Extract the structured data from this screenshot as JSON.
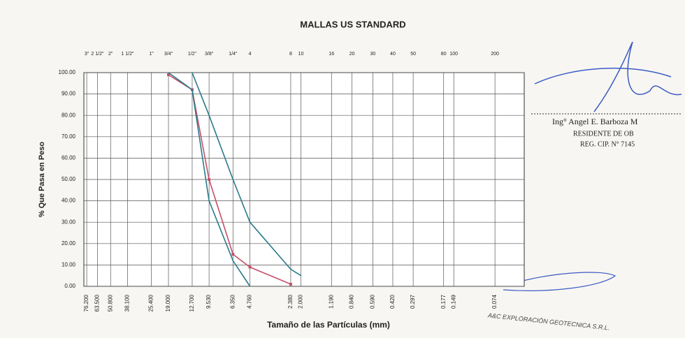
{
  "chart_data": {
    "type": "line",
    "title": "MALLAS US STANDARD",
    "xlabel": "Tamaño de las Partículas (mm)",
    "ylabel": "% Que Pasa en Peso",
    "xscale": "log",
    "grid": true,
    "xlim": [
      80,
      0.045
    ],
    "ylim": [
      0,
      100
    ],
    "x": [
      19.0,
      12.7,
      9.53,
      6.35,
      4.76,
      2.38,
      2.0
    ],
    "series": [
      {
        "color": "#c4506a",
        "markers": true,
        "values": [
          99,
          92,
          50,
          15,
          9,
          1,
          null
        ]
      },
      {
        "color": "#2a7a8c",
        "markers": false,
        "values": [
          null,
          100,
          80,
          50,
          30,
          8,
          5
        ]
      },
      {
        "color": "#2a7a8c",
        "markers": false,
        "values": [
          100,
          92,
          40,
          12,
          0,
          null,
          null
        ]
      }
    ],
    "xticks": [
      {
        "value": 76.2,
        "label": "76.200"
      },
      {
        "value": 63.5,
        "label": "63.500"
      },
      {
        "value": 50.8,
        "label": "50.800"
      },
      {
        "value": 38.1,
        "label": "38.100"
      },
      {
        "value": 25.4,
        "label": "25.400"
      },
      {
        "value": 19.0,
        "label": "19.000"
      },
      {
        "value": 12.7,
        "label": "12.700"
      },
      {
        "value": 9.53,
        "label": "9.530"
      },
      {
        "value": 6.35,
        "label": "6.350"
      },
      {
        "value": 4.76,
        "label": "4.760"
      },
      {
        "value": 2.38,
        "label": "2.380"
      },
      {
        "value": 2.0,
        "label": "2.000"
      },
      {
        "value": 1.19,
        "label": "1.190"
      },
      {
        "value": 0.84,
        "label": "0.840"
      },
      {
        "value": 0.59,
        "label": "0.590"
      },
      {
        "value": 0.42,
        "label": "0.420"
      },
      {
        "value": 0.297,
        "label": "0.297"
      },
      {
        "value": 0.177,
        "label": "0.177"
      },
      {
        "value": 0.149,
        "label": "0.149"
      },
      {
        "value": 0.074,
        "label": "0.074"
      }
    ],
    "top_labels": [
      "3\"",
      "2 1/2\"",
      "2\"",
      "1 1/2\"",
      "1\"",
      "3/4\"",
      "1/2\"",
      "3/8\"",
      "1/4\"",
      "4",
      "8",
      "10",
      "16",
      "20",
      "30",
      "40",
      "50",
      "80",
      "100",
      "200"
    ],
    "yticks": [
      {
        "value": 0,
        "label": "0.00"
      },
      {
        "value": 10,
        "label": "10.00"
      },
      {
        "value": 20,
        "label": "20.00"
      },
      {
        "value": 30,
        "label": "30.00"
      },
      {
        "value": 40,
        "label": "40.00"
      },
      {
        "value": 50,
        "label": "50.00"
      },
      {
        "value": 60,
        "label": "60.00"
      },
      {
        "value": 70,
        "label": "70.00"
      },
      {
        "value": 80,
        "label": "80.00"
      },
      {
        "value": 90,
        "label": "90.00"
      },
      {
        "value": 100,
        "label": "100.00"
      }
    ],
    "annotations": {
      "stamp": [
        "Ing° Angel E. Barboza M",
        "RESIDENTE DE OB",
        "REG. CIP. N° 7145"
      ],
      "footer": "A&C EXPLORACIÓN GEOTECNICA S.R.L."
    }
  }
}
